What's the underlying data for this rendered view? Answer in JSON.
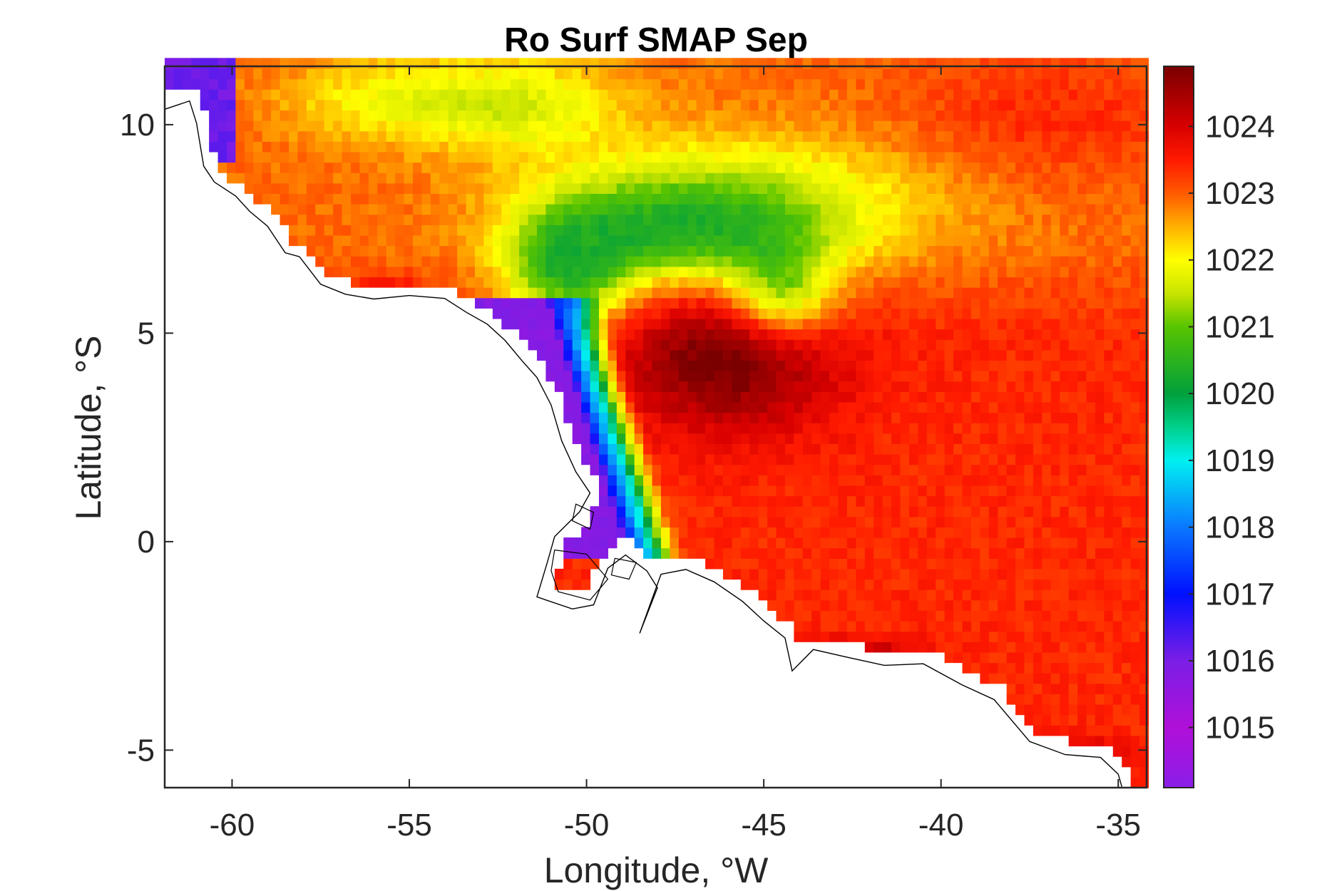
{
  "chart_data": {
    "type": "heatmap",
    "title": "Ro Surf SMAP Sep",
    "xlabel": "Longitude, °W",
    "ylabel": "Latitude, °S",
    "xlim": [
      -61.9,
      -34.2
    ],
    "ylim": [
      -5.9,
      11.4
    ],
    "x_ticks": [
      -60,
      -55,
      -50,
      -45,
      -40,
      -35
    ],
    "x_tick_labels": [
      "-60",
      "-55",
      "-50",
      "-45",
      "-40",
      "-35"
    ],
    "y_ticks": [
      -5,
      0,
      5,
      10
    ],
    "y_tick_labels": [
      "-5",
      "0",
      "5",
      "10"
    ],
    "grid": false,
    "colorbar": {
      "range": [
        1014.1,
        1024.9
      ],
      "ticks": [
        1015,
        1016,
        1017,
        1018,
        1019,
        1020,
        1021,
        1022,
        1023,
        1024
      ],
      "tick_labels": [
        "1015",
        "1016",
        "1017",
        "1018",
        "1019",
        "1020",
        "1021",
        "1022",
        "1023",
        "1024"
      ],
      "colormap_stops": [
        {
          "v": 1014.1,
          "color": "#8a1ee8"
        },
        {
          "v": 1015.0,
          "color": "#b010d8"
        },
        {
          "v": 1016.0,
          "color": "#7a1ee6"
        },
        {
          "v": 1017.0,
          "color": "#0010ff"
        },
        {
          "v": 1018.0,
          "color": "#0a78ff"
        },
        {
          "v": 1019.0,
          "color": "#00f0f0"
        },
        {
          "v": 1019.5,
          "color": "#00d08a"
        },
        {
          "v": 1020.0,
          "color": "#00a03c"
        },
        {
          "v": 1021.0,
          "color": "#58c400"
        },
        {
          "v": 1021.5,
          "color": "#c8e400"
        },
        {
          "v": 1022.0,
          "color": "#ffff00"
        },
        {
          "v": 1022.5,
          "color": "#ffb000"
        },
        {
          "v": 1023.0,
          "color": "#ff5a00"
        },
        {
          "v": 1023.5,
          "color": "#ff1a00"
        },
        {
          "v": 1024.0,
          "color": "#d80000"
        },
        {
          "v": 1024.9,
          "color": "#7a0000"
        }
      ]
    },
    "field_features": {
      "open_ocean_value": 1023.4,
      "amazon_plume_core_value": 1015.8,
      "green_arc_value": 1020.3,
      "northwest_band_value": 1022.8
    }
  }
}
